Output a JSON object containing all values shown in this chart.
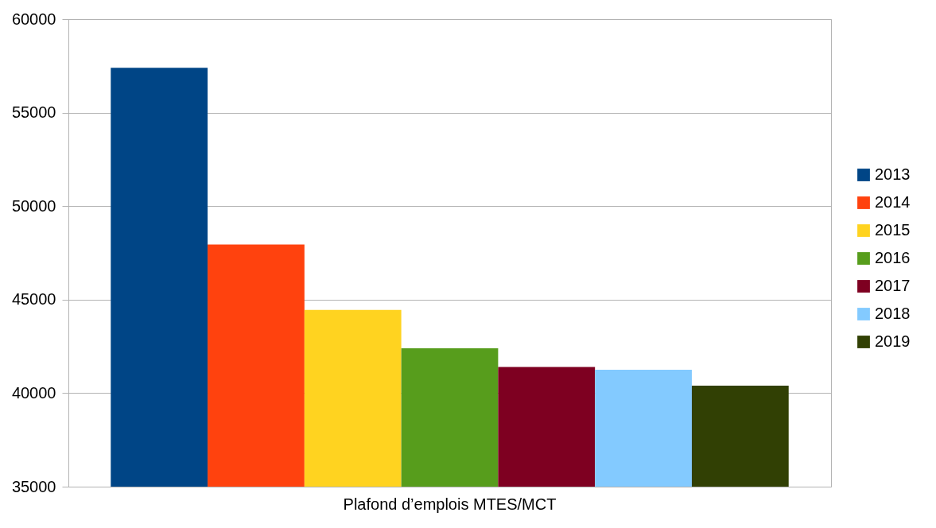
{
  "chart_data": {
    "type": "bar",
    "categories": [
      "Plafond d’emplois MTES/MCT"
    ],
    "series": [
      {
        "name": "2013",
        "color": "#004586",
        "values": [
          57400
        ]
      },
      {
        "name": "2014",
        "color": "#ff420e",
        "values": [
          47950
        ]
      },
      {
        "name": "2015",
        "color": "#ffd320",
        "values": [
          44450
        ]
      },
      {
        "name": "2016",
        "color": "#579d1c",
        "values": [
          42400
        ]
      },
      {
        "name": "2017",
        "color": "#7e0021",
        "values": [
          41400
        ]
      },
      {
        "name": "2018",
        "color": "#83caff",
        "values": [
          41250
        ]
      },
      {
        "name": "2019",
        "color": "#314004",
        "values": [
          40400
        ]
      }
    ],
    "ylim": [
      35000,
      60000
    ],
    "yticks": [
      35000,
      40000,
      45000,
      50000,
      55000,
      60000
    ],
    "grid": "y",
    "legend": "right"
  }
}
